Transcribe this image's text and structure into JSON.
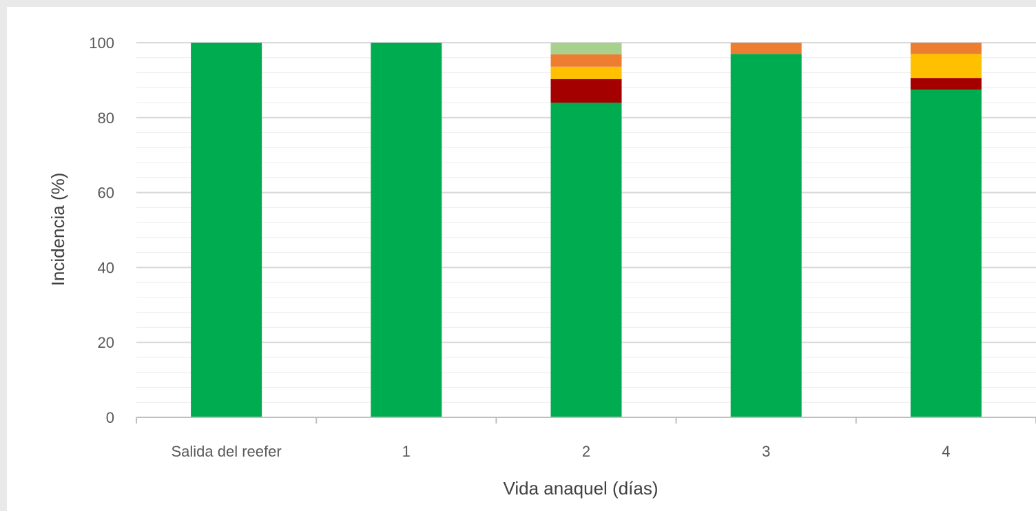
{
  "chart_data": {
    "type": "bar",
    "stacked": true,
    "title": "",
    "xlabel": "Vida anaquel (días)",
    "ylabel": "Incidencia (%)",
    "ylim": [
      0,
      100
    ],
    "yticks": [
      0,
      20,
      40,
      60,
      80,
      100
    ],
    "minor_gridline_step": 4,
    "grid": true,
    "legend": "none",
    "categories": [
      "Salida del reefer",
      "1",
      "2",
      "3",
      "4"
    ],
    "series": [
      {
        "color": "#00ac50",
        "values": [
          100,
          100,
          84,
          97,
          87.5
        ]
      },
      {
        "color": "#a50000",
        "values": [
          0,
          0,
          6.3,
          0,
          3.1
        ]
      },
      {
        "color": "#ffc000",
        "values": [
          0,
          0,
          3.3,
          0,
          6.4
        ]
      },
      {
        "color": "#ed7d31",
        "values": [
          0,
          0,
          3.3,
          3,
          3
        ]
      },
      {
        "color": "#a9d18e",
        "values": [
          0,
          0,
          3.1,
          0,
          0
        ]
      }
    ]
  }
}
